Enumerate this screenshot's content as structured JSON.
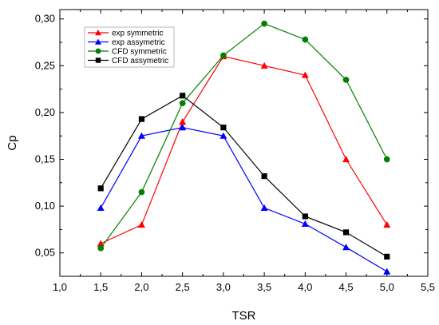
{
  "chart_data": {
    "type": "line",
    "title": "",
    "xlabel": "TSR",
    "ylabel": "Cp",
    "xlim": [
      1.0,
      5.5
    ],
    "ylim": [
      0.025,
      0.31
    ],
    "x_ticks": [
      "1,0",
      "1,5",
      "2,0",
      "2,5",
      "3,0",
      "3,5",
      "4,0",
      "4,5",
      "5,0",
      "5,5"
    ],
    "x_tick_values": [
      1.0,
      1.5,
      2.0,
      2.5,
      3.0,
      3.5,
      4.0,
      4.5,
      5.0,
      5.5
    ],
    "y_ticks": [
      "0,05",
      "0,10",
      "0,15",
      "0,20",
      "0,25",
      "0,30"
    ],
    "y_tick_values": [
      0.05,
      0.1,
      0.15,
      0.2,
      0.25,
      0.3
    ],
    "grid": false,
    "legend_position": "top-left",
    "series": [
      {
        "name": "exp symmetric",
        "color": "#ff0000",
        "marker": "triangle",
        "x": [
          1.5,
          2.0,
          2.5,
          3.0,
          3.5,
          4.0,
          4.5,
          5.0
        ],
        "y": [
          0.06,
          0.08,
          0.19,
          0.26,
          0.25,
          0.24,
          0.15,
          0.08
        ]
      },
      {
        "name": "exp assymetric",
        "color": "#0000ff",
        "marker": "triangle",
        "x": [
          1.5,
          2.0,
          2.5,
          3.0,
          3.5,
          4.0,
          4.5,
          5.0
        ],
        "y": [
          0.098,
          0.175,
          0.184,
          0.175,
          0.098,
          0.081,
          0.056,
          0.03
        ]
      },
      {
        "name": "CFD symmetric",
        "color": "#008000",
        "marker": "circle",
        "x": [
          1.5,
          2.0,
          2.5,
          3.0,
          3.5,
          4.0,
          4.5,
          5.0
        ],
        "y": [
          0.055,
          0.115,
          0.21,
          0.261,
          0.295,
          0.278,
          0.235,
          0.15
        ]
      },
      {
        "name": "CFD assymetric",
        "color": "#000000",
        "marker": "square",
        "x": [
          1.5,
          2.0,
          2.5,
          3.0,
          3.5,
          4.0,
          4.5,
          5.0
        ],
        "y": [
          0.119,
          0.193,
          0.218,
          0.184,
          0.132,
          0.089,
          0.072,
          0.046
        ]
      }
    ]
  }
}
